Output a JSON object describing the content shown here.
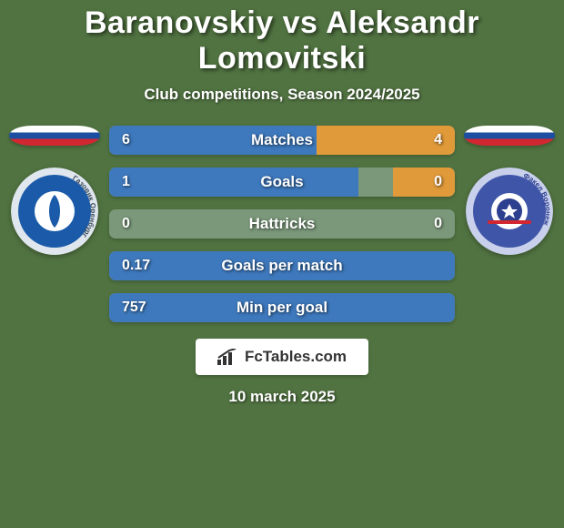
{
  "background_color": "#517341",
  "title": "Baranovskiy vs Aleksandr Lomovitski",
  "title_fontsize": 34,
  "subtitle": "Club competitions, Season 2024/2025",
  "subtitle_fontsize": 17,
  "date": "10 march 2025",
  "left_player": {
    "flag_colors": {
      "top": "#ffffff",
      "middle": "#1c4fa1",
      "bottom": "#d22730"
    },
    "crest_bg": "#1a5aa8",
    "crest_center": "#ffffff",
    "crest_ring": "#dfe6ee",
    "crest_text": "Газовик  Оренбург"
  },
  "right_player": {
    "flag_colors": {
      "top": "#ffffff",
      "middle": "#1c4fa1",
      "bottom": "#d22730"
    },
    "crest_bg": "#3f55a8",
    "crest_center": "#ffffff",
    "crest_ring": "#c8d0ec",
    "crest_text": "Факел  Воронеж"
  },
  "bar_style": {
    "track_color": "#7b987a",
    "left_fill_color": "#3e79bd",
    "right_fill_color": "#e09a3a",
    "height": 32,
    "border_radius": 7,
    "label_fontsize": 17,
    "value_fontsize": 16,
    "label_color": "#ffffff"
  },
  "stats": [
    {
      "label": "Matches",
      "left_val": "6",
      "right_val": "4",
      "left_pct": 60,
      "right_pct": 40
    },
    {
      "label": "Goals",
      "left_val": "1",
      "right_val": "0",
      "left_pct": 72,
      "right_pct": 18
    },
    {
      "label": "Hattricks",
      "left_val": "0",
      "right_val": "0",
      "left_pct": 0,
      "right_pct": 0
    },
    {
      "label": "Goals per match",
      "left_val": "0.17",
      "right_val": "",
      "left_pct": 100,
      "right_pct": 0
    },
    {
      "label": "Min per goal",
      "left_val": "757",
      "right_val": "",
      "left_pct": 100,
      "right_pct": 0
    }
  ],
  "brand": {
    "text": "FcTables.com",
    "icon_color": "#333333",
    "box_bg": "#ffffff"
  }
}
